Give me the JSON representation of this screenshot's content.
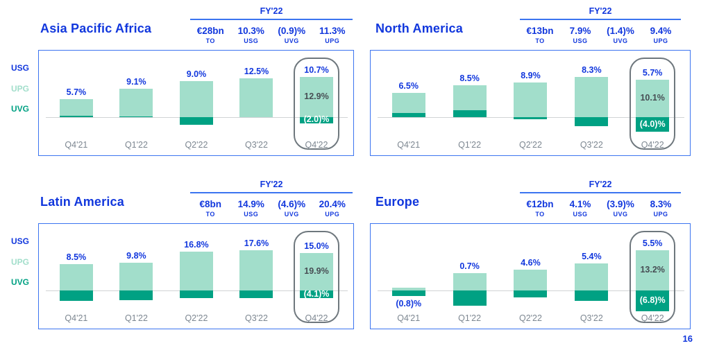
{
  "page_number": "16",
  "colors": {
    "accent_blue": "#1137dd",
    "border_blue": "#3b74f0",
    "upg_light_green": "#a2decb",
    "uvg_dark_green": "#00a183",
    "quarter_gray": "#7d8791",
    "highlight_border_gray": "#6e777d",
    "upg_value_gray": "#474e54",
    "axis_gray": "#d0d3d5"
  },
  "legend": {
    "items": [
      {
        "label": "USG",
        "color": "#1137dd"
      },
      {
        "label": "UPG",
        "color": "#a2decb"
      },
      {
        "label": "UVG",
        "color": "#00a183"
      }
    ]
  },
  "regions": [
    {
      "title": "Asia Pacific Africa",
      "fy": {
        "label": "FY'22",
        "stats": [
          {
            "value": "€28bn",
            "label": "TO"
          },
          {
            "value": "10.3%",
            "label": "USG"
          },
          {
            "value": "(0.9)%",
            "label": "UVG"
          },
          {
            "value": "11.3%",
            "label": "UPG"
          }
        ]
      }
    },
    {
      "title": "North America",
      "fy": {
        "label": "FY'22",
        "stats": [
          {
            "value": "€13bn",
            "label": "TO"
          },
          {
            "value": "7.9%",
            "label": "USG"
          },
          {
            "value": "(1.4)%",
            "label": "UVG"
          },
          {
            "value": "9.4%",
            "label": "UPG"
          }
        ]
      }
    },
    {
      "title": "Latin America",
      "fy": {
        "label": "FY'22",
        "stats": [
          {
            "value": "€8bn",
            "label": "TO"
          },
          {
            "value": "14.9%",
            "label": "USG"
          },
          {
            "value": "(4.6)%",
            "label": "UVG"
          },
          {
            "value": "20.4%",
            "label": "UPG"
          }
        ]
      }
    },
    {
      "title": "Europe",
      "fy": {
        "label": "FY'22",
        "stats": [
          {
            "value": "€12bn",
            "label": "TO"
          },
          {
            "value": "4.1%",
            "label": "USG"
          },
          {
            "value": "(3.9)%",
            "label": "UVG"
          },
          {
            "value": "8.3%",
            "label": "UPG"
          }
        ]
      }
    }
  ],
  "chart_data": [
    {
      "type": "bar",
      "title": "Asia Pacific Africa",
      "categories": [
        "Q4'21",
        "Q1'22",
        "Q2'22",
        "Q3'22",
        "Q4'22"
      ],
      "usg_labels": [
        "5.7%",
        "9.1%",
        "9.0%",
        "12.5%",
        "10.7%"
      ],
      "series": [
        {
          "name": "UPG",
          "values": [
            5.2,
            8.8,
            11.5,
            12.5,
            12.9
          ]
        },
        {
          "name": "UVG",
          "values": [
            0.5,
            0.3,
            -2.5,
            0,
            -2.0
          ]
        }
      ],
      "highlight_index": 4,
      "highlight_labels": {
        "upg": "12.9%",
        "uvg": "(2.0)%"
      },
      "ylim": [
        -6,
        16
      ],
      "grid": false,
      "legend_position": "left"
    },
    {
      "type": "bar",
      "title": "North America",
      "categories": [
        "Q4'21",
        "Q1'22",
        "Q2'22",
        "Q3'22",
        "Q4'22"
      ],
      "usg_labels": [
        "6.5%",
        "8.5%",
        "8.9%",
        "8.3%",
        "5.7%"
      ],
      "series": [
        {
          "name": "UPG",
          "values": [
            5.4,
            6.6,
            9.4,
            10.8,
            10.1
          ]
        },
        {
          "name": "UVG",
          "values": [
            1.1,
            1.9,
            -0.5,
            -2.5,
            -4.0
          ]
        }
      ],
      "highlight_index": 4,
      "highlight_labels": {
        "upg": "10.1%",
        "uvg": "(4.0)%"
      },
      "ylim": [
        -6,
        14
      ],
      "grid": false,
      "legend_position": "left"
    },
    {
      "type": "bar",
      "title": "Latin America",
      "categories": [
        "Q4'21",
        "Q1'22",
        "Q2'22",
        "Q3'22",
        "Q4'22"
      ],
      "usg_labels": [
        "8.5%",
        "9.8%",
        "16.8%",
        "17.6%",
        "15.0%"
      ],
      "series": [
        {
          "name": "UPG",
          "values": [
            14.0,
            15.0,
            20.7,
            21.5,
            19.9
          ]
        },
        {
          "name": "UVG",
          "values": [
            -5.5,
            -5.2,
            -3.9,
            -3.9,
            -4.1
          ]
        }
      ],
      "highlight_index": 4,
      "highlight_labels": {
        "upg": "19.9%",
        "uvg": "(4.1)%"
      },
      "ylim": [
        -8,
        26
      ],
      "grid": false,
      "legend_position": "left"
    },
    {
      "type": "bar",
      "title": "Europe",
      "categories": [
        "Q4'21",
        "Q1'22",
        "Q2'22",
        "Q3'22",
        "Q4'22"
      ],
      "usg_labels": [
        "(0.8)%",
        "0.7%",
        "4.6%",
        "5.4%",
        "5.5%"
      ],
      "series": [
        {
          "name": "UPG",
          "values": [
            1.0,
            5.8,
            6.9,
            8.9,
            13.2
          ]
        },
        {
          "name": "UVG",
          "values": [
            -1.8,
            -5.1,
            -2.3,
            -3.5,
            -6.8
          ]
        }
      ],
      "highlight_index": 4,
      "highlight_labels": {
        "upg": "13.2%",
        "uvg": "(6.8)%"
      },
      "label_below_index": 0,
      "ylim": [
        -8,
        16
      ],
      "grid": false,
      "legend_position": "left"
    }
  ]
}
